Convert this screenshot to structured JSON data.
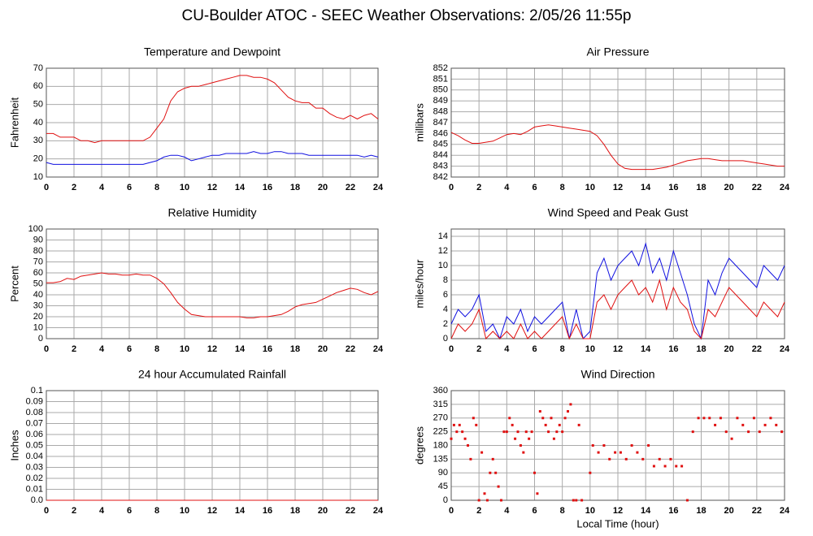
{
  "title": "CU-Boulder ATOC - SEEC Weather Observations: 2/05/26 11:55p",
  "chart_data": [
    {
      "type": "line",
      "title": "Temperature and Dewpoint",
      "ylabel": "Fahrenheit",
      "grid": true,
      "xlim": [
        0,
        24
      ],
      "xticks": [
        0,
        2,
        4,
        6,
        8,
        10,
        12,
        14,
        16,
        18,
        20,
        22,
        24
      ],
      "ylim": [
        10,
        70
      ],
      "yticks": [
        10,
        20,
        30,
        40,
        50,
        60,
        70
      ],
      "x": [
        0,
        0.5,
        1,
        1.5,
        2,
        2.5,
        3,
        3.5,
        4,
        4.5,
        5,
        5.5,
        6,
        6.5,
        7,
        7.5,
        8,
        8.5,
        9,
        9.5,
        10,
        10.5,
        11,
        11.5,
        12,
        12.5,
        13,
        13.5,
        14,
        14.5,
        15,
        15.5,
        16,
        16.5,
        17,
        17.5,
        18,
        18.5,
        19,
        19.5,
        20,
        20.5,
        21,
        21.5,
        22,
        22.5,
        23,
        23.5,
        24
      ],
      "series": [
        {
          "color": "#e01010",
          "values": [
            34,
            34,
            32,
            32,
            32,
            30,
            30,
            29,
            30,
            30,
            30,
            30,
            30,
            30,
            30,
            32,
            37,
            42,
            52,
            57,
            59,
            60,
            60,
            61,
            62,
            63,
            64,
            65,
            66,
            66,
            65,
            65,
            64,
            62,
            58,
            54,
            52,
            51,
            51,
            48,
            48,
            45,
            43,
            42,
            44,
            42,
            44,
            45,
            42
          ]
        },
        {
          "color": "#1010e0",
          "values": [
            18,
            17,
            17,
            17,
            17,
            17,
            17,
            17,
            17,
            17,
            17,
            17,
            17,
            17,
            17,
            18,
            19,
            21,
            22,
            22,
            21,
            19,
            20,
            21,
            22,
            22,
            23,
            23,
            23,
            23,
            24,
            23,
            23,
            24,
            24,
            23,
            23,
            23,
            22,
            22,
            22,
            22,
            22,
            22,
            22,
            22,
            21,
            22,
            21
          ]
        }
      ]
    },
    {
      "type": "line",
      "title": "Air Pressure",
      "ylabel": "millibars",
      "grid": true,
      "xlim": [
        0,
        24
      ],
      "xticks": [
        0,
        2,
        4,
        6,
        8,
        10,
        12,
        14,
        16,
        18,
        20,
        22,
        24
      ],
      "ylim": [
        842,
        852
      ],
      "yticks": [
        842,
        843,
        844,
        845,
        846,
        847,
        848,
        849,
        850,
        851,
        852
      ],
      "x": [
        0,
        0.5,
        1,
        1.5,
        2,
        2.5,
        3,
        3.5,
        4,
        4.5,
        5,
        5.5,
        6,
        6.5,
        7,
        7.5,
        8,
        8.5,
        9,
        9.5,
        10,
        10.5,
        11,
        11.5,
        12,
        12.5,
        13,
        13.5,
        14,
        14.5,
        15,
        15.5,
        16,
        16.5,
        17,
        17.5,
        18,
        18.5,
        19,
        19.5,
        20,
        20.5,
        21,
        21.5,
        22,
        22.5,
        23,
        23.5,
        24
      ],
      "series": [
        {
          "color": "#e01010",
          "values": [
            846.1,
            845.8,
            845.4,
            845.1,
            845.1,
            845.2,
            845.3,
            845.6,
            845.9,
            846,
            845.9,
            846.2,
            846.6,
            846.7,
            846.8,
            846.7,
            846.6,
            846.5,
            846.4,
            846.3,
            846.2,
            845.8,
            845,
            844,
            843.2,
            842.8,
            842.7,
            842.7,
            842.7,
            842.7,
            842.8,
            842.9,
            843.1,
            843.3,
            843.5,
            843.6,
            843.7,
            843.7,
            843.6,
            843.5,
            843.5,
            843.5,
            843.5,
            843.4,
            843.3,
            843.2,
            843.1,
            843,
            843
          ]
        }
      ]
    },
    {
      "type": "line",
      "title": "Relative Humidity",
      "ylabel": "Percent",
      "grid": true,
      "xlim": [
        0,
        24
      ],
      "xticks": [
        0,
        2,
        4,
        6,
        8,
        10,
        12,
        14,
        16,
        18,
        20,
        22,
        24
      ],
      "ylim": [
        0,
        100
      ],
      "yticks": [
        0,
        10,
        20,
        30,
        40,
        50,
        60,
        70,
        80,
        90,
        100
      ],
      "x": [
        0,
        0.5,
        1,
        1.5,
        2,
        2.5,
        3,
        3.5,
        4,
        4.5,
        5,
        5.5,
        6,
        6.5,
        7,
        7.5,
        8,
        8.5,
        9,
        9.5,
        10,
        10.5,
        11,
        11.5,
        12,
        12.5,
        13,
        13.5,
        14,
        14.5,
        15,
        15.5,
        16,
        16.5,
        17,
        17.5,
        18,
        18.5,
        19,
        19.5,
        20,
        20.5,
        21,
        21.5,
        22,
        22.5,
        23,
        23.5,
        24
      ],
      "series": [
        {
          "color": "#e01010",
          "values": [
            51,
            51,
            52,
            55,
            54,
            57,
            58,
            59,
            60,
            59,
            59,
            58,
            58,
            59,
            58,
            58,
            55,
            50,
            42,
            33,
            27,
            22,
            21,
            20,
            20,
            20,
            20,
            20,
            20,
            19,
            19,
            20,
            20,
            21,
            22,
            25,
            29,
            31,
            32,
            33,
            36,
            39,
            42,
            44,
            46,
            45,
            42,
            40,
            43
          ]
        }
      ]
    },
    {
      "type": "line",
      "title": "Wind Speed and Peak Gust",
      "ylabel": "miles/hour",
      "grid": true,
      "xlim": [
        0,
        24
      ],
      "xticks": [
        0,
        2,
        4,
        6,
        8,
        10,
        12,
        14,
        16,
        18,
        20,
        22,
        24
      ],
      "ylim": [
        0,
        15
      ],
      "yticks": [
        0,
        2,
        4,
        6,
        8,
        10,
        12,
        14
      ],
      "x": [
        0,
        0.5,
        1,
        1.5,
        2,
        2.5,
        3,
        3.5,
        4,
        4.5,
        5,
        5.5,
        6,
        6.5,
        7,
        7.5,
        8,
        8.5,
        9,
        9.5,
        10,
        10.5,
        11,
        11.5,
        12,
        12.5,
        13,
        13.5,
        14,
        14.5,
        15,
        15.5,
        16,
        16.5,
        17,
        17.5,
        18,
        18.5,
        19,
        19.5,
        20,
        20.5,
        21,
        21.5,
        22,
        22.5,
        23,
        23.5,
        24
      ],
      "series": [
        {
          "color": "#1010e0",
          "values": [
            2,
            4,
            3,
            4,
            6,
            1,
            2,
            0,
            3,
            2,
            4,
            1,
            3,
            2,
            3,
            4,
            5,
            0,
            4,
            0,
            1,
            9,
            11,
            8,
            10,
            11,
            12,
            10,
            13,
            9,
            11,
            8,
            12,
            9,
            6,
            2,
            0,
            8,
            6,
            9,
            11,
            10,
            9,
            8,
            7,
            10,
            9,
            8,
            10
          ]
        },
        {
          "color": "#e01010",
          "values": [
            0,
            2,
            1,
            2,
            4,
            0,
            1,
            0,
            1,
            0,
            2,
            0,
            1,
            0,
            1,
            2,
            3,
            0,
            2,
            0,
            0,
            5,
            6,
            4,
            6,
            7,
            8,
            6,
            7,
            5,
            8,
            4,
            7,
            5,
            4,
            1,
            0,
            4,
            3,
            5,
            7,
            6,
            5,
            4,
            3,
            5,
            4,
            3,
            5
          ]
        }
      ]
    },
    {
      "type": "line",
      "title": "24 hour Accumulated Rainfall",
      "ylabel": "Inches",
      "grid": true,
      "xlim": [
        0,
        24
      ],
      "xticks": [
        0,
        2,
        4,
        6,
        8,
        10,
        12,
        14,
        16,
        18,
        20,
        22,
        24
      ],
      "ylim": [
        0,
        0.1
      ],
      "yticks": [
        {
          "value": 0,
          "label": "0.0"
        },
        0.01,
        0.02,
        0.03,
        0.04,
        0.05,
        0.06,
        0.07,
        0.08,
        0.09,
        0.1
      ],
      "x": [
        0,
        24
      ],
      "series": [
        {
          "color": "#e01010",
          "values": [
            0,
            0
          ]
        }
      ]
    },
    {
      "type": "scatter",
      "title": "Wind Direction",
      "ylabel": "degrees",
      "xlabel": "Local Time (hour)",
      "grid": true,
      "xlim": [
        0,
        24
      ],
      "xticks": [
        0,
        2,
        4,
        6,
        8,
        10,
        12,
        14,
        16,
        18,
        20,
        22,
        24
      ],
      "ylim": [
        0,
        360
      ],
      "yticks": [
        0,
        45,
        90,
        135,
        180,
        225,
        270,
        315,
        360
      ],
      "x": [
        0,
        0.2,
        0.4,
        0.6,
        0.8,
        1,
        1.2,
        1.4,
        1.6,
        1.8,
        2,
        2.2,
        2.4,
        2.6,
        2.8,
        3,
        3.2,
        3.4,
        3.6,
        3.8,
        4,
        4.2,
        4.4,
        4.6,
        4.8,
        5,
        5.2,
        5.4,
        5.6,
        5.8,
        6,
        6.2,
        6.4,
        6.6,
        6.8,
        7,
        7.2,
        7.4,
        7.6,
        7.8,
        8,
        8.2,
        8.4,
        8.6,
        8.8,
        9,
        9.2,
        9.4,
        10,
        10.2,
        10.6,
        11,
        11.4,
        11.8,
        12.2,
        12.6,
        13,
        13.4,
        13.8,
        14.2,
        14.6,
        15,
        15.4,
        15.8,
        16.2,
        16.6,
        17,
        17.4,
        17.8,
        18.2,
        18.6,
        19,
        19.4,
        19.8,
        20.2,
        20.6,
        21,
        21.4,
        21.8,
        22.2,
        22.6,
        23,
        23.4,
        23.8
      ],
      "series": [
        {
          "color": "#e01010",
          "values": [
            202,
            247,
            225,
            247,
            225,
            202,
            180,
            135,
            270,
            247,
            0,
            157,
            22,
            0,
            90,
            135,
            90,
            45,
            0,
            225,
            225,
            270,
            247,
            202,
            225,
            180,
            157,
            225,
            202,
            225,
            90,
            22,
            292,
            270,
            247,
            225,
            270,
            202,
            225,
            247,
            225,
            270,
            292,
            315,
            0,
            0,
            247,
            0,
            90,
            180,
            157,
            180,
            135,
            157,
            157,
            135,
            180,
            157,
            135,
            180,
            112,
            135,
            112,
            135,
            112,
            112,
            0,
            225,
            270,
            270,
            270,
            247,
            270,
            225,
            202,
            270,
            247,
            225,
            270,
            225,
            247,
            270,
            247,
            225
          ]
        }
      ]
    }
  ]
}
